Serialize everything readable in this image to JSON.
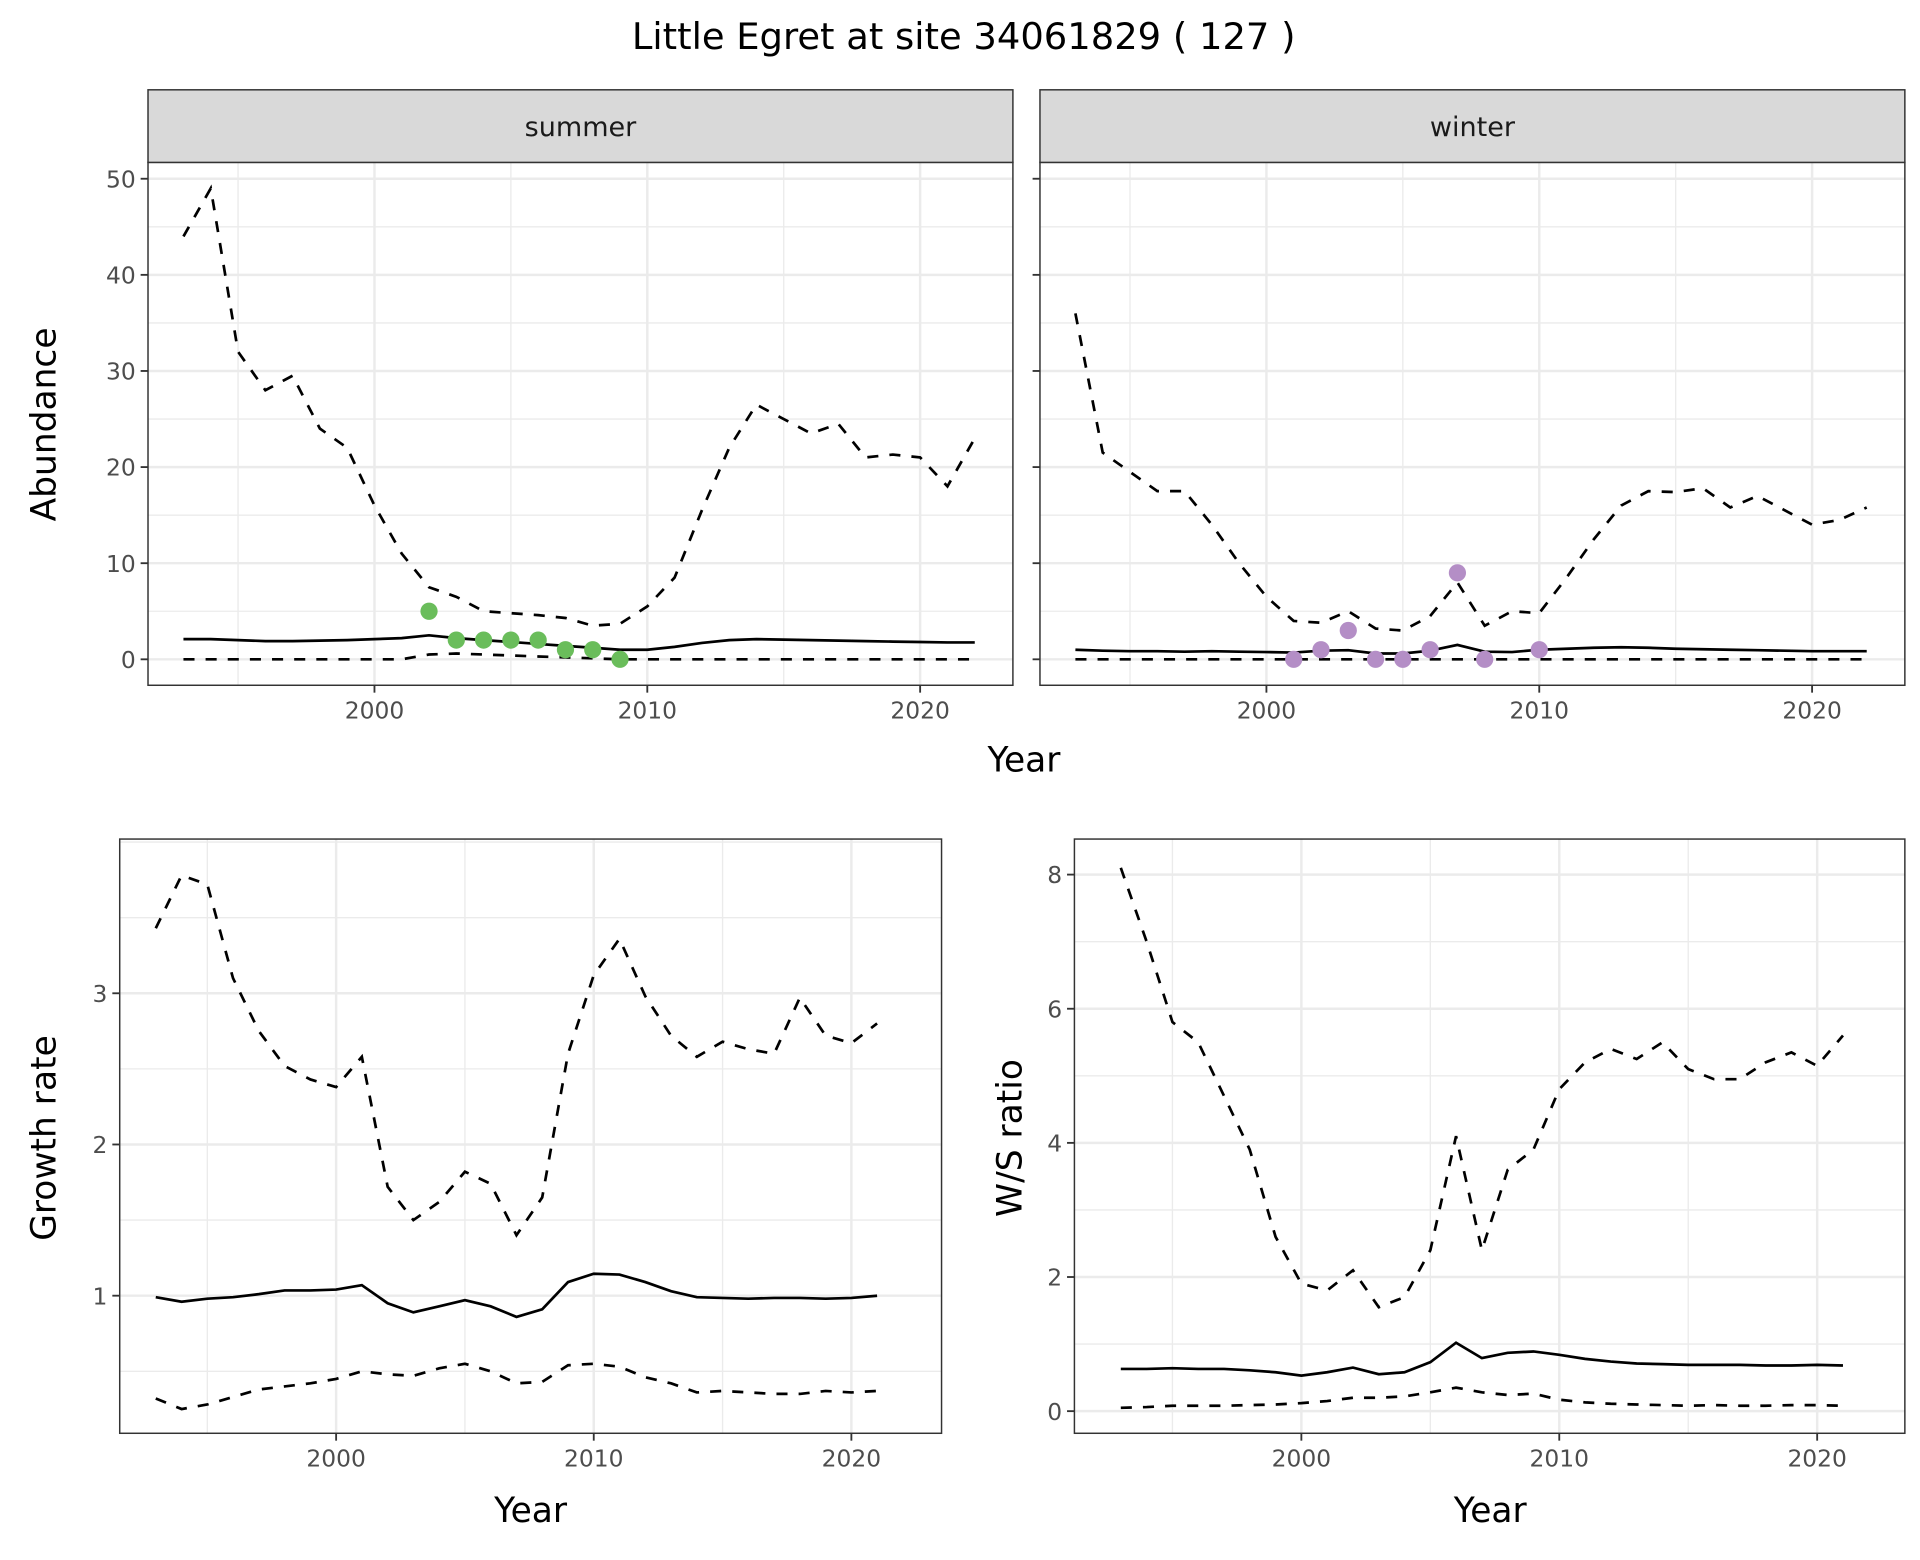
{
  "chart_data": {
    "title": "Little Egret at site 34061829 ( 127 )",
    "panels": [
      {
        "id": "summer",
        "type": "line",
        "strip": "summer",
        "xlabel": "Year",
        "ylabel": "Abundance",
        "xlim": [
          1991.7,
          2023.4
        ],
        "ylim": [
          -2.7,
          51.7
        ],
        "xticks": [
          2000,
          2010,
          2020
        ],
        "yticks": [
          0,
          10,
          20,
          30,
          40,
          50
        ],
        "grid": true,
        "x": [
          1993,
          1994,
          1995,
          1996,
          1997,
          1998,
          1999,
          2000,
          2001,
          2002,
          2003,
          2004,
          2005,
          2006,
          2007,
          2008,
          2009,
          2010,
          2011,
          2012,
          2013,
          2014,
          2015,
          2016,
          2017,
          2018,
          2019,
          2020,
          2021,
          2022
        ],
        "series": [
          {
            "style": "dashed",
            "values": [
              44,
              49,
              32,
              28,
              29.5,
              24,
              22,
              16,
              11,
              7.5,
              6.5,
              5,
              4.8,
              4.6,
              4.3,
              3.5,
              3.7,
              5.5,
              8.5,
              15.5,
              22,
              26.5,
              25,
              23.5,
              24.5,
              21,
              21.3,
              21,
              18,
              23
            ]
          },
          {
            "style": "solid",
            "values": [
              2.1,
              2.1,
              2.0,
              1.9,
              1.9,
              1.95,
              2.0,
              2.1,
              2.2,
              2.5,
              2.2,
              2.0,
              1.8,
              1.6,
              1.4,
              1.2,
              1.0,
              1.0,
              1.3,
              1.7,
              2.0,
              2.1,
              2.05,
              2.0,
              1.95,
              1.9,
              1.85,
              1.8,
              1.75,
              1.75
            ]
          },
          {
            "style": "dashed",
            "values": [
              0,
              0,
              0,
              0,
              0,
              0,
              0,
              0,
              0,
              0.5,
              0.6,
              0.5,
              0.4,
              0.3,
              0.2,
              0.1,
              0,
              0,
              0,
              0,
              0,
              0,
              0,
              0,
              0,
              0,
              0,
              0,
              0,
              0
            ]
          }
        ],
        "points": {
          "color": "#6ABD5B",
          "x": [
            2002,
            2003,
            2004,
            2005,
            2006,
            2007,
            2008,
            2009
          ],
          "y": [
            5,
            2,
            2,
            2,
            2,
            1,
            1,
            0
          ]
        }
      },
      {
        "id": "winter",
        "type": "line",
        "strip": "winter",
        "xlim": [
          1991.7,
          2023.4
        ],
        "ylim": [
          -2.7,
          51.7
        ],
        "xticks": [
          2000,
          2010,
          2020
        ],
        "yticks": [
          0,
          10,
          20,
          30,
          40,
          50
        ],
        "grid": true,
        "x": [
          1993,
          1994,
          1995,
          1996,
          1997,
          1998,
          1999,
          2000,
          2001,
          2002,
          2003,
          2004,
          2005,
          2006,
          2007,
          2008,
          2009,
          2010,
          2011,
          2012,
          2013,
          2014,
          2015,
          2016,
          2017,
          2018,
          2019,
          2020,
          2021,
          2022
        ],
        "series": [
          {
            "style": "dashed",
            "values": [
              36,
              21.5,
              19.5,
              17.5,
              17.5,
              14,
              10,
              6.5,
              4,
              3.8,
              5,
              3.2,
              3,
              4.5,
              8,
              3.5,
              5,
              4.8,
              8.5,
              12.5,
              16,
              17.5,
              17.4,
              17.8,
              15.8,
              17,
              15.5,
              14,
              14.5,
              15.8
            ]
          },
          {
            "style": "solid",
            "values": [
              1.0,
              0.9,
              0.85,
              0.85,
              0.8,
              0.85,
              0.8,
              0.75,
              0.7,
              0.9,
              0.95,
              0.6,
              0.6,
              0.9,
              1.5,
              0.8,
              0.75,
              1.0,
              1.1,
              1.2,
              1.25,
              1.2,
              1.1,
              1.05,
              1.0,
              0.95,
              0.9,
              0.85,
              0.85,
              0.85
            ]
          },
          {
            "style": "dashed",
            "values": [
              0,
              0,
              0,
              0,
              0,
              0,
              0,
              0,
              0,
              0,
              0,
              0,
              0,
              0,
              0,
              0,
              0,
              0,
              0,
              0,
              0,
              0,
              0,
              0,
              0,
              0,
              0,
              0,
              0,
              0
            ]
          }
        ],
        "points": {
          "color": "#B48EC6",
          "x": [
            2001,
            2002,
            2003,
            2004,
            2005,
            2006,
            2007,
            2008,
            2010
          ],
          "y": [
            0,
            1,
            3,
            0,
            0,
            1,
            9,
            0,
            1
          ]
        }
      },
      {
        "id": "growth",
        "type": "line",
        "xlabel": "Year",
        "ylabel": "Growth rate",
        "xlim": [
          1991.6,
          2023.5
        ],
        "ylim": [
          0.09,
          4.02
        ],
        "xticks": [
          2000,
          2010,
          2020
        ],
        "yticks": [
          1,
          2,
          3
        ],
        "grid": true,
        "x": [
          1993,
          1994,
          1995,
          1996,
          1997,
          1998,
          1999,
          2000,
          2001,
          2002,
          2003,
          2004,
          2005,
          2006,
          2007,
          2008,
          2009,
          2010,
          2011,
          2012,
          2013,
          2014,
          2015,
          2016,
          2017,
          2018,
          2019,
          2020,
          2021
        ],
        "series": [
          {
            "style": "dashed",
            "values": [
              3.43,
              3.78,
              3.72,
              3.1,
              2.75,
              2.52,
              2.43,
              2.38,
              2.58,
              1.72,
              1.5,
              1.62,
              1.82,
              1.74,
              1.4,
              1.65,
              2.6,
              3.12,
              3.36,
              2.98,
              2.72,
              2.58,
              2.68,
              2.63,
              2.6,
              2.97,
              2.72,
              2.67,
              2.8
            ]
          },
          {
            "style": "solid",
            "values": [
              0.99,
              0.96,
              0.98,
              0.99,
              1.01,
              1.035,
              1.035,
              1.04,
              1.07,
              0.95,
              0.89,
              0.93,
              0.97,
              0.93,
              0.86,
              0.91,
              1.09,
              1.145,
              1.14,
              1.09,
              1.03,
              0.99,
              0.985,
              0.98,
              0.985,
              0.985,
              0.98,
              0.985,
              1.0
            ]
          },
          {
            "style": "dashed",
            "values": [
              0.32,
              0.25,
              0.28,
              0.33,
              0.38,
              0.4,
              0.42,
              0.45,
              0.5,
              0.48,
              0.47,
              0.52,
              0.55,
              0.5,
              0.42,
              0.43,
              0.54,
              0.55,
              0.53,
              0.46,
              0.42,
              0.36,
              0.37,
              0.36,
              0.35,
              0.35,
              0.37,
              0.36,
              0.37
            ]
          }
        ]
      },
      {
        "id": "ratio",
        "type": "line",
        "xlabel": "Year",
        "ylabel": "W/S ratio",
        "xlim": [
          1991.2,
          2023.4
        ],
        "ylim": [
          -0.33,
          8.53
        ],
        "xticks": [
          2000,
          2010,
          2020
        ],
        "yticks": [
          0,
          2,
          4,
          6,
          8
        ],
        "grid": true,
        "x": [
          1993,
          1994,
          1995,
          1996,
          1997,
          1998,
          1999,
          2000,
          2001,
          2002,
          2003,
          2004,
          2005,
          2006,
          2007,
          2008,
          2009,
          2010,
          2011,
          2012,
          2013,
          2014,
          2015,
          2016,
          2017,
          2018,
          2019,
          2020,
          2021
        ],
        "series": [
          {
            "style": "dashed",
            "values": [
              8.1,
              7.0,
              5.8,
              5.5,
              4.7,
              3.9,
              2.6,
              1.9,
              1.8,
              2.1,
              1.55,
              1.7,
              2.4,
              4.1,
              2.4,
              3.6,
              3.9,
              4.8,
              5.2,
              5.4,
              5.25,
              5.5,
              5.1,
              4.95,
              4.95,
              5.2,
              5.35,
              5.15,
              5.6
            ]
          },
          {
            "style": "solid",
            "values": [
              0.63,
              0.63,
              0.64,
              0.63,
              0.63,
              0.61,
              0.58,
              0.53,
              0.58,
              0.65,
              0.55,
              0.58,
              0.73,
              1.02,
              0.79,
              0.87,
              0.89,
              0.84,
              0.78,
              0.74,
              0.71,
              0.7,
              0.69,
              0.69,
              0.69,
              0.68,
              0.68,
              0.69,
              0.68
            ]
          },
          {
            "style": "dashed",
            "values": [
              0.05,
              0.06,
              0.08,
              0.08,
              0.08,
              0.09,
              0.1,
              0.12,
              0.15,
              0.2,
              0.2,
              0.22,
              0.28,
              0.35,
              0.28,
              0.24,
              0.26,
              0.17,
              0.13,
              0.11,
              0.1,
              0.09,
              0.08,
              0.09,
              0.08,
              0.08,
              0.09,
              0.09,
              0.08
            ]
          }
        ]
      }
    ]
  }
}
